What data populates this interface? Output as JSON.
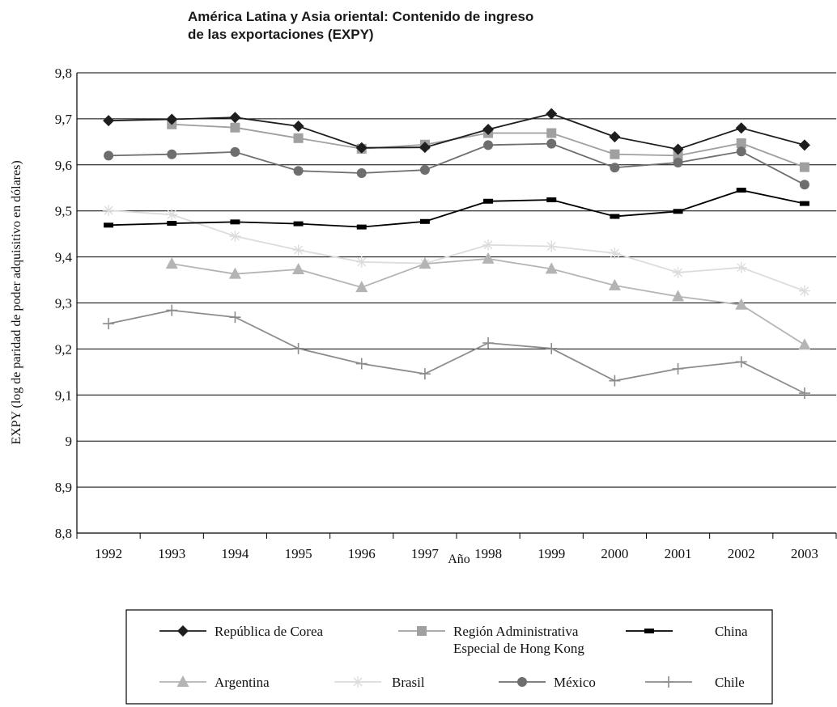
{
  "chart_data": {
    "type": "line",
    "title": [
      "América Latina y Asia oriental: Contenido de ingreso",
      "de las exportaciones (EXPY)"
    ],
    "xlabel": "Año",
    "ylabel": "EXPY (log de paridad de poder adquisitivo en dólares)",
    "ylim": [
      8.8,
      9.8
    ],
    "y_ticks": [
      "8,8",
      "8,9",
      "9",
      "9,1",
      "9,2",
      "9,3",
      "9,4",
      "9,5",
      "9,6",
      "9,7",
      "9,8"
    ],
    "y_tick_values": [
      8.8,
      8.9,
      9.0,
      9.1,
      9.2,
      9.3,
      9.4,
      9.5,
      9.6,
      9.7,
      9.8
    ],
    "grid": true,
    "legend_position": "bottom",
    "categories": [
      "1992",
      "1993",
      "1994",
      "1995",
      "1996",
      "1997",
      "1998",
      "1999",
      "2000",
      "2001",
      "2002",
      "2003"
    ],
    "series": [
      {
        "name": "República de Corea",
        "marker": "diamond",
        "color": "#1e1e1e",
        "values": [
          9.696,
          9.699,
          9.703,
          9.684,
          9.637,
          9.638,
          9.677,
          9.711,
          9.661,
          9.634,
          9.68,
          9.643
        ]
      },
      {
        "name": "Región Administrativa Especial de Hong Kong",
        "marker": "square",
        "color": "#a0a0a0",
        "values": [
          null,
          9.688,
          9.681,
          9.658,
          9.635,
          9.644,
          9.669,
          9.669,
          9.623,
          9.62,
          9.647,
          9.595
        ]
      },
      {
        "name": "China",
        "marker": "dash",
        "color": "#000000",
        "values": [
          9.469,
          9.473,
          9.476,
          9.472,
          9.465,
          9.477,
          9.521,
          9.524,
          9.488,
          9.499,
          9.545,
          9.516
        ]
      },
      {
        "name": "Argentina",
        "marker": "triangle",
        "color": "#b4b4b4",
        "values": [
          null,
          9.385,
          9.363,
          9.373,
          9.334,
          9.385,
          9.396,
          9.374,
          9.338,
          9.314,
          9.296,
          9.209
        ]
      },
      {
        "name": "Brasil",
        "marker": "asterisk",
        "color": "#dcdcdc",
        "values": [
          9.501,
          9.492,
          9.445,
          9.415,
          9.389,
          9.386,
          9.426,
          9.423,
          9.408,
          9.366,
          9.377,
          9.326
        ]
      },
      {
        "name": "México",
        "marker": "circle",
        "color": "#6e6e6e",
        "values": [
          9.62,
          9.623,
          9.628,
          9.587,
          9.582,
          9.589,
          9.643,
          9.646,
          9.594,
          9.605,
          9.629,
          9.557
        ]
      },
      {
        "name": "Chile",
        "marker": "plus",
        "color": "#8c8c8c",
        "values": [
          9.255,
          9.284,
          9.269,
          9.201,
          9.168,
          9.146,
          9.213,
          9.201,
          9.131,
          9.157,
          9.172,
          9.104
        ]
      }
    ],
    "legend_layout": [
      [
        {
          "series": 0,
          "lines": [
            "República de Corea"
          ]
        },
        {
          "series": 1,
          "lines": [
            "Región Administrativa",
            "Especial de Hong Kong"
          ]
        },
        {
          "series": 2,
          "lines": [
            "China"
          ]
        }
      ],
      [
        {
          "series": 3,
          "lines": [
            "Argentina"
          ]
        },
        {
          "series": 4,
          "lines": [
            "Brasil"
          ]
        },
        {
          "series": 5,
          "lines": [
            "México"
          ]
        },
        {
          "series": 6,
          "lines": [
            "Chile"
          ]
        }
      ]
    ]
  }
}
